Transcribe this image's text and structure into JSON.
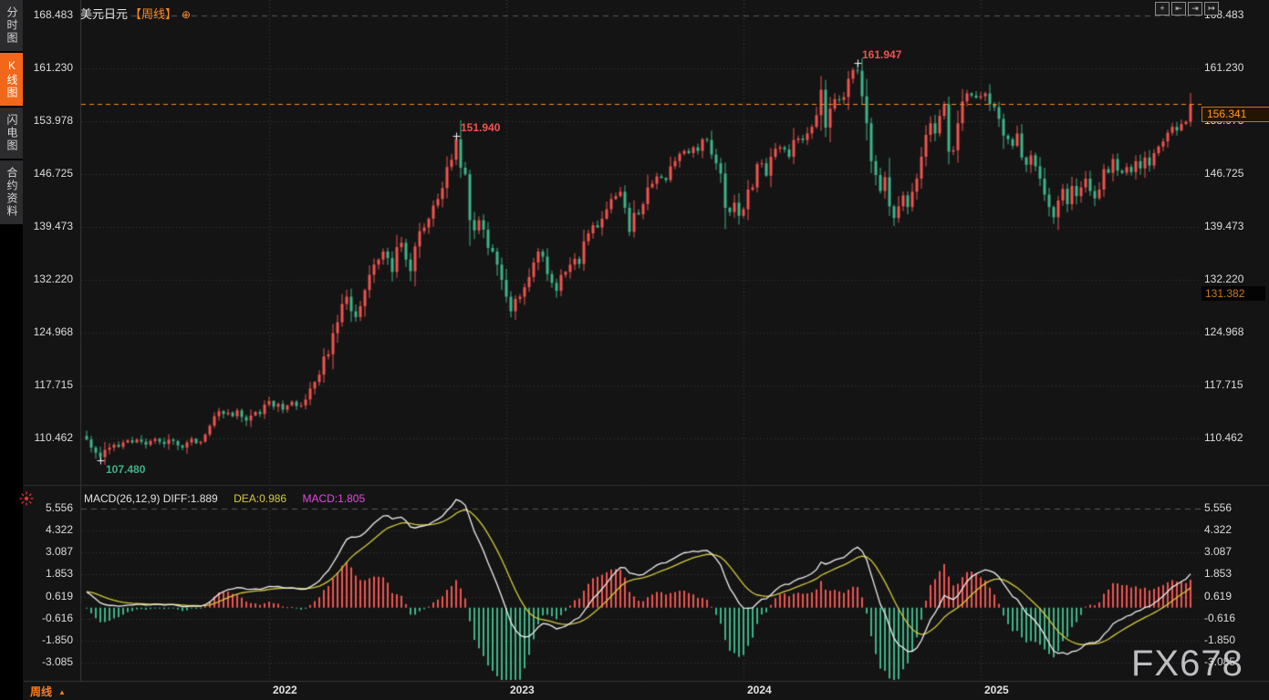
{
  "window": {
    "watermark": "FX678"
  },
  "sidebar": {
    "items": [
      {
        "label": "分时图",
        "active": false
      },
      {
        "label": "K线图",
        "active": true
      },
      {
        "label": "闪电图",
        "active": false
      },
      {
        "label": "合约资料",
        "active": false
      }
    ]
  },
  "header": {
    "symbol": "美元日元",
    "period_tag": "【周线】",
    "add_icon": "⊕"
  },
  "toolbar": {
    "buttons": [
      {
        "name": "pan-tool",
        "glyph": "+"
      },
      {
        "name": "scale-x-axis",
        "glyph": "⇤"
      },
      {
        "name": "scale-y-axis",
        "glyph": "⇥"
      },
      {
        "name": "exit-chart",
        "glyph": "↦"
      }
    ]
  },
  "macd_header": {
    "main": "MACD(26,12,9) DIFF:1.889",
    "dea": "DEA:0.986",
    "macd": "MACD:1.805"
  },
  "footer": {
    "period": "周线",
    "arrow": "▲"
  },
  "colors": {
    "up": "#ef5350",
    "down": "#3cb487",
    "accent": "#ff8a1e",
    "diff_line": "#f0f0f0",
    "dea_line": "#d6ca3d",
    "macd_value": "#e04ae0",
    "grid": "#3a3a3e",
    "background": "#141414"
  },
  "chart_data": {
    "type": "candlestick",
    "title": "美元日元【周线】",
    "symbol": "USD/JPY",
    "timeframe": "weekly",
    "price_axis_ticks": [
      "168.483",
      "161.230",
      "153.978",
      "146.725",
      "139.473",
      "132.220",
      "124.968",
      "117.715",
      "110.462"
    ],
    "macd_axis_ticks": [
      "5.556",
      "4.322",
      "3.087",
      "1.853",
      "0.619",
      "-0.616",
      "-1.850",
      "-3.085"
    ],
    "x_years": [
      {
        "label": "2022",
        "week": 40
      },
      {
        "label": "2023",
        "week": 92
      },
      {
        "label": "2024",
        "week": 144
      },
      {
        "label": "2025",
        "week": 196
      }
    ],
    "markers": {
      "current_price": "156.341",
      "level_low": "131.382"
    },
    "annotations": [
      {
        "text": "151.940",
        "price": 151.94,
        "week": 81,
        "side": "high"
      },
      {
        "text": "161.947",
        "price": 161.947,
        "week": 169,
        "side": "high"
      },
      {
        "text": "107.480",
        "price": 107.48,
        "week": 3,
        "side": "low"
      }
    ],
    "macd": {
      "params": "26,12,9",
      "diff": 1.889,
      "dea": 0.986,
      "macd": 1.805
    },
    "first_open": 110.8,
    "closes": [
      110.3,
      109.2,
      108.5,
      107.9,
      108.9,
      109.2,
      109.6,
      109.3,
      109.9,
      110.2,
      109.9,
      110.3,
      110.0,
      109.6,
      110.1,
      110.4,
      110.0,
      109.7,
      110.3,
      110.1,
      109.5,
      109.2,
      109.9,
      110.4,
      109.8,
      110.0,
      111.0,
      112.2,
      113.5,
      114.2,
      113.8,
      114.0,
      113.5,
      114.3,
      113.4,
      112.9,
      113.6,
      114.1,
      113.8,
      115.1,
      115.6,
      114.8,
      115.2,
      114.4,
      115.0,
      115.5,
      114.9,
      115.0,
      115.8,
      117.3,
      118.2,
      119.2,
      121.7,
      122.0,
      124.9,
      126.4,
      128.9,
      129.9,
      127.9,
      127.1,
      128.6,
      130.8,
      132.9,
      134.3,
      135.0,
      136.1,
      135.2,
      133.3,
      136.7,
      137.3,
      135.0,
      133.4,
      136.8,
      138.9,
      139.4,
      140.6,
      142.4,
      143.3,
      144.8,
      147.7,
      148.7,
      151.5,
      147.6,
      146.7,
      140.4,
      139.0,
      140.4,
      139.1,
      136.6,
      136.1,
      134.3,
      132.2,
      129.9,
      127.9,
      129.6,
      129.9,
      131.2,
      132.6,
      134.6,
      136.1,
      135.4,
      133.0,
      131.8,
      130.7,
      132.9,
      133.3,
      134.3,
      135.1,
      134.4,
      137.5,
      138.6,
      139.7,
      139.4,
      140.6,
      141.9,
      143.3,
      143.7,
      144.3,
      142.1,
      138.8,
      141.4,
      141.2,
      142.6,
      144.9,
      145.4,
      146.4,
      146.2,
      145.9,
      147.8,
      148.5,
      149.5,
      149.9,
      149.6,
      150.4,
      149.9,
      151.5,
      151.4,
      149.4,
      148.2,
      146.8,
      142.1,
      141.5,
      142.8,
      141.0,
      141.9,
      144.6,
      144.9,
      148.1,
      148.2,
      146.5,
      149.1,
      150.2,
      150.4,
      150.1,
      149.1,
      151.4,
      151.6,
      151.4,
      152.3,
      153.2,
      154.8,
      158.3,
      153.1,
      155.7,
      157.0,
      156.9,
      157.3,
      159.8,
      161.0,
      160.9,
      157.4,
      153.7,
      148.5,
      146.6,
      144.4,
      146.3,
      142.3,
      140.7,
      142.3,
      143.8,
      142.2,
      144.3,
      146.1,
      149.1,
      152.1,
      153.7,
      152.3,
      154.7,
      156.3,
      149.8,
      150.0,
      153.7,
      156.7,
      157.8,
      157.5,
      157.2,
      157.4,
      157.8,
      156.3,
      155.9,
      154.3,
      152.0,
      151.5,
      150.6,
      152.3,
      149.0,
      148.0,
      149.3,
      147.8,
      146.1,
      143.9,
      142.2,
      140.8,
      143.1,
      144.7,
      142.6,
      145.1,
      143.7,
      144.9,
      146.1,
      144.4,
      143.4,
      144.6,
      147.4,
      146.9,
      148.8,
      147.2,
      146.9,
      147.7,
      147.0,
      148.5,
      147.5,
      149.0,
      147.9,
      149.6,
      150.5,
      151.2,
      152.4,
      153.2,
      152.7,
      153.6,
      153.9,
      156.34
    ],
    "wick_overrides": {
      "3": {
        "low": 107.48
      },
      "81": {
        "high": 151.94
      },
      "161": {
        "high": 160.2
      },
      "162": {
        "low": 151.8
      },
      "168": {
        "high": 161.3
      },
      "169": {
        "high": 161.947
      },
      "177": {
        "low": 139.58
      },
      "212": {
        "low": 139.89
      },
      "242": {
        "high": 157.85
      }
    }
  }
}
